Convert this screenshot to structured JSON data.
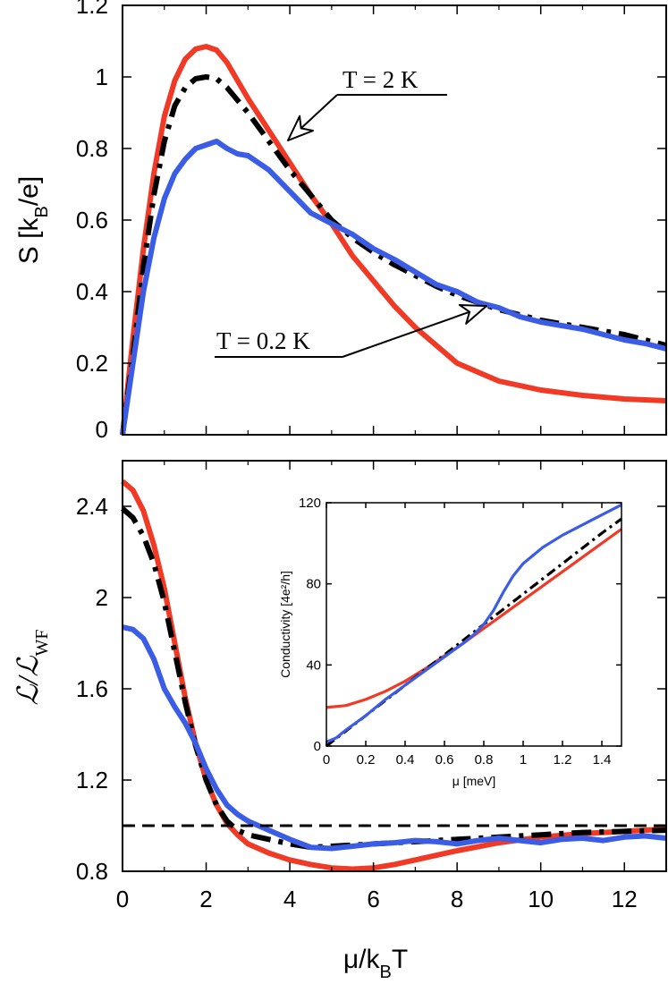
{
  "colors": {
    "red": "#f03a26",
    "blue": "#3b5de6",
    "black": "#000000"
  },
  "chart_data": [
    {
      "id": "top",
      "type": "line",
      "xlabel": "",
      "ylabel": {
        "main": "S [k",
        "sub": "B",
        "end": "/e]"
      },
      "xlim": [
        0,
        13
      ],
      "ylim": [
        0,
        1.2
      ],
      "x_ticks": [
        0,
        2,
        4,
        6,
        8,
        10,
        12
      ],
      "y_ticks": [
        "0",
        "0.2",
        "0.4",
        "0.6",
        "0.8",
        "1",
        "1.2"
      ],
      "series": [
        {
          "name": "red",
          "color": "#f03a26",
          "style": "solid",
          "x": [
            0,
            0.25,
            0.5,
            0.75,
            1,
            1.25,
            1.5,
            1.75,
            2,
            2.25,
            2.5,
            2.75,
            3,
            3.5,
            4,
            4.5,
            5,
            5.5,
            6,
            6.5,
            7,
            7.5,
            8,
            9,
            10,
            11,
            12,
            13
          ],
          "y": [
            0,
            0.27,
            0.52,
            0.73,
            0.89,
            0.99,
            1.05,
            1.078,
            1.085,
            1.075,
            1.04,
            0.99,
            0.94,
            0.85,
            0.76,
            0.67,
            0.59,
            0.5,
            0.43,
            0.36,
            0.3,
            0.25,
            0.2,
            0.15,
            0.125,
            0.11,
            0.1,
            0.095
          ]
        },
        {
          "name": "black-dashdot",
          "color": "#000000",
          "style": "dashdot",
          "x": [
            0,
            0.25,
            0.5,
            0.75,
            1,
            1.25,
            1.5,
            1.75,
            2,
            2.25,
            2.5,
            2.75,
            3,
            3.5,
            4,
            4.5,
            5,
            5.5,
            6,
            6.5,
            7,
            7.5,
            8,
            9,
            10,
            11,
            12,
            13
          ],
          "y": [
            0,
            0.22,
            0.47,
            0.67,
            0.82,
            0.92,
            0.97,
            0.995,
            1.0,
            0.995,
            0.97,
            0.935,
            0.9,
            0.82,
            0.74,
            0.67,
            0.6,
            0.55,
            0.51,
            0.475,
            0.445,
            0.415,
            0.39,
            0.35,
            0.32,
            0.3,
            0.28,
            0.25
          ]
        },
        {
          "name": "blue",
          "color": "#3b5de6",
          "style": "solid",
          "x": [
            0,
            0.25,
            0.5,
            0.75,
            1,
            1.25,
            1.5,
            1.75,
            2,
            2.25,
            2.5,
            2.75,
            3,
            3.25,
            3.5,
            3.75,
            4,
            4.25,
            4.5,
            5,
            5.5,
            6,
            6.5,
            7,
            7.5,
            8,
            8.5,
            9,
            9.5,
            10,
            10.5,
            11,
            11.5,
            12,
            12.5,
            13
          ],
          "y": [
            0,
            0.2,
            0.4,
            0.55,
            0.66,
            0.73,
            0.77,
            0.8,
            0.81,
            0.82,
            0.8,
            0.785,
            0.78,
            0.76,
            0.74,
            0.71,
            0.68,
            0.65,
            0.62,
            0.59,
            0.56,
            0.52,
            0.49,
            0.455,
            0.42,
            0.4,
            0.37,
            0.355,
            0.33,
            0.315,
            0.305,
            0.295,
            0.28,
            0.265,
            0.255,
            0.24
          ]
        }
      ],
      "annotations": [
        {
          "text": "T = 2 K"
        },
        {
          "text": "T = 0.2 K"
        }
      ]
    },
    {
      "id": "bottom",
      "type": "line",
      "xlabel": {
        "main": "μ/k",
        "sub": "B",
        "end": "T"
      },
      "ylabel": {
        "main": "ℒ/ℒ",
        "sub": "WF"
      },
      "xlim": [
        0,
        13
      ],
      "ylim": [
        0.8,
        2.6
      ],
      "x_ticks": [
        "0",
        "2",
        "4",
        "6",
        "8",
        "10",
        "12"
      ],
      "y_ticks": [
        "0.8",
        "1.2",
        "1.6",
        "2",
        "2.4"
      ],
      "series": [
        {
          "name": "red",
          "color": "#f03a26",
          "style": "solid",
          "x": [
            0,
            0.25,
            0.5,
            0.75,
            1,
            1.25,
            1.5,
            1.75,
            2,
            2.25,
            2.5,
            2.75,
            3,
            3.5,
            4,
            4.5,
            5,
            5.5,
            6,
            6.5,
            7,
            8,
            9,
            10,
            11,
            12,
            13
          ],
          "y": [
            2.51,
            2.47,
            2.38,
            2.23,
            2.04,
            1.8,
            1.56,
            1.36,
            1.2,
            1.09,
            1.01,
            0.96,
            0.92,
            0.88,
            0.85,
            0.83,
            0.815,
            0.81,
            0.815,
            0.83,
            0.85,
            0.89,
            0.925,
            0.95,
            0.965,
            0.975,
            0.985
          ]
        },
        {
          "name": "black-dashdot",
          "color": "#000000",
          "style": "dashdot",
          "x": [
            0,
            0.25,
            0.5,
            0.75,
            1,
            1.25,
            1.5,
            1.75,
            2,
            2.25,
            2.5,
            2.75,
            3,
            3.5,
            4,
            4.5,
            5,
            6,
            7,
            8,
            9,
            10,
            11,
            12,
            13
          ],
          "y": [
            2.39,
            2.35,
            2.27,
            2.15,
            1.98,
            1.76,
            1.54,
            1.35,
            1.2,
            1.09,
            1.02,
            0.98,
            0.96,
            0.94,
            0.92,
            0.905,
            0.91,
            0.92,
            0.93,
            0.94,
            0.95,
            0.96,
            0.97,
            0.975,
            0.98
          ]
        },
        {
          "name": "blue",
          "color": "#3b5de6",
          "style": "solid",
          "x": [
            0,
            0.25,
            0.5,
            0.75,
            1,
            1.25,
            1.5,
            1.75,
            2,
            2.25,
            2.5,
            2.75,
            3,
            3.5,
            4,
            4.5,
            5,
            5.5,
            6,
            6.5,
            7,
            7.5,
            8,
            8.5,
            9,
            9.5,
            10,
            10.5,
            11,
            11.5,
            12,
            12.5,
            13
          ],
          "y": [
            1.87,
            1.86,
            1.82,
            1.73,
            1.6,
            1.52,
            1.45,
            1.36,
            1.25,
            1.16,
            1.09,
            1.05,
            1.02,
            0.98,
            0.94,
            0.905,
            0.9,
            0.91,
            0.92,
            0.925,
            0.935,
            0.93,
            0.92,
            0.935,
            0.945,
            0.935,
            0.925,
            0.94,
            0.945,
            0.935,
            0.95,
            0.955,
            0.945
          ]
        },
        {
          "name": "reference-dashed",
          "color": "#000000",
          "style": "dashed",
          "x": [
            0,
            13
          ],
          "y": [
            1.0,
            1.0
          ]
        }
      ]
    },
    {
      "id": "inset",
      "type": "line",
      "xlabel": "μ [meV]",
      "ylabel": "Conductivity [4e²/h]",
      "xlim": [
        0,
        1.5
      ],
      "ylim": [
        0,
        120
      ],
      "x_ticks": [
        "0",
        "0.2",
        "0.4",
        "0.6",
        "0.8",
        "1",
        "1.2",
        "1.4"
      ],
      "y_ticks": [
        "0",
        "40",
        "80",
        "120"
      ],
      "series": [
        {
          "name": "red",
          "color": "#f03a26",
          "style": "solid",
          "x": [
            0,
            0.1,
            0.2,
            0.3,
            0.4,
            0.5,
            0.6,
            0.7,
            0.8,
            0.9,
            1.0,
            1.1,
            1.2,
            1.3,
            1.4,
            1.5
          ],
          "y": [
            19,
            20,
            23,
            27,
            32,
            38,
            44.5,
            51,
            58,
            65,
            72,
            79,
            86,
            93,
            100,
            107
          ]
        },
        {
          "name": "black-dashdot",
          "color": "#000000",
          "style": "dashdot",
          "x": [
            0,
            0.1,
            0.2,
            0.4,
            0.6,
            0.8,
            1.0,
            1.2,
            1.4,
            1.5
          ],
          "y": [
            0,
            7.5,
            15,
            30,
            45,
            60,
            75,
            90,
            105,
            112
          ]
        },
        {
          "name": "blue",
          "color": "#3b5de6",
          "style": "solid",
          "x": [
            0,
            0.05,
            0.1,
            0.2,
            0.3,
            0.4,
            0.5,
            0.6,
            0.7,
            0.75,
            0.8,
            0.85,
            0.9,
            0.95,
            1.0,
            1.1,
            1.2,
            1.3,
            1.4,
            1.5
          ],
          "y": [
            2,
            4,
            8,
            15,
            23,
            30,
            37,
            44,
            51,
            55,
            60,
            67,
            76,
            84,
            90,
            98,
            104,
            109,
            114,
            119
          ]
        }
      ]
    }
  ]
}
